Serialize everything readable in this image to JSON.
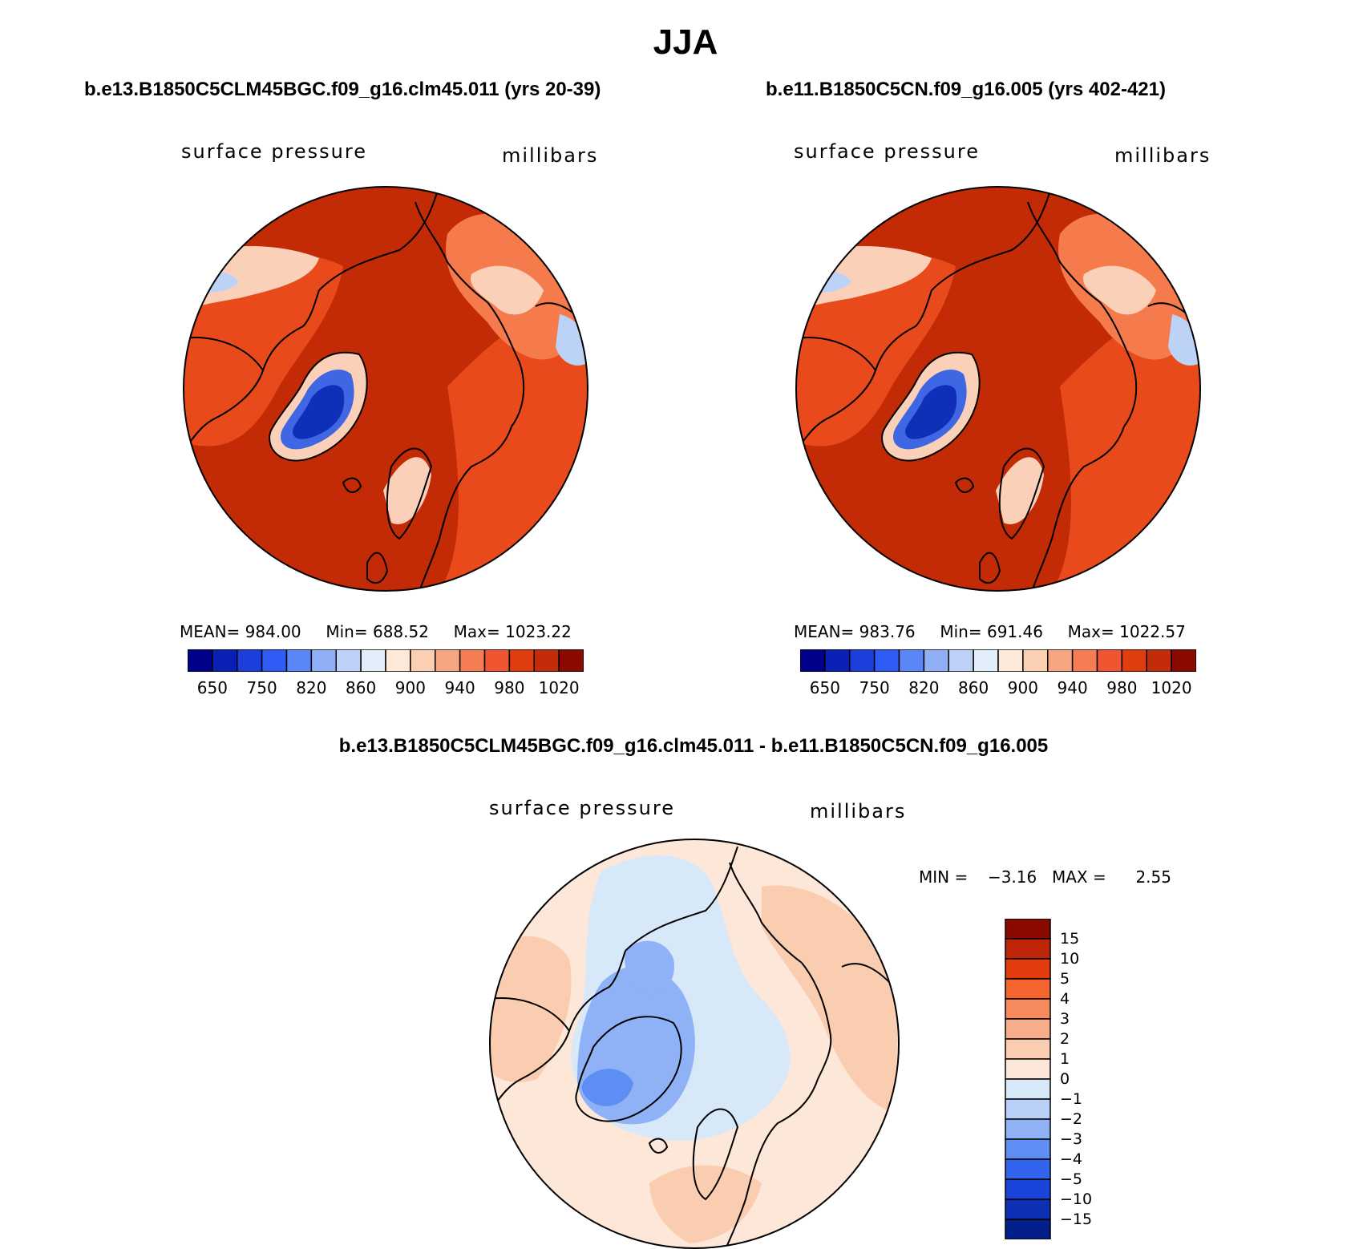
{
  "title": "JJA",
  "panels": [
    {
      "case": "b.e13.B1850C5CLM45BGC.f09_g16.clm45.011 (yrs 20-39)",
      "variable": "surface pressure",
      "units": "millibars",
      "stats": {
        "mean_label": "MEAN=",
        "mean": "984.00",
        "min_label": "Min=",
        "min": "688.52",
        "max_label": "Max=",
        "max": "1023.22"
      }
    },
    {
      "case": "b.e11.B1850C5CN.f09_g16.005 (yrs 402-421)",
      "variable": "surface pressure",
      "units": "millibars",
      "stats": {
        "mean_label": "MEAN=",
        "mean": "983.76",
        "min_label": "Min=",
        "min": "691.46",
        "max_label": "Max=",
        "max": "1022.57"
      }
    }
  ],
  "colorbar": {
    "labels": [
      "650",
      "750",
      "820",
      "860",
      "900",
      "940",
      "980",
      "1020"
    ],
    "colors": [
      "#00008b",
      "#0a1fb5",
      "#1c3fdc",
      "#2e5cf5",
      "#5a86f7",
      "#8eaef5",
      "#bdd0f7",
      "#e3eefb",
      "#fde9d9",
      "#fbcfb2",
      "#f7a682",
      "#f47d54",
      "#ef5530",
      "#e03e10",
      "#c22c08",
      "#8a0a00"
    ]
  },
  "difference": {
    "title": "b.e13.B1850C5CLM45BGC.f09_g16.clm45.011 - b.e11.B1850C5CN.f09_g16.005",
    "variable": "surface pressure",
    "units": "millibars",
    "min_label": "MIN =",
    "min": "−3.16",
    "max_label": "MAX =",
    "max": "2.55",
    "colorbar_labels": [
      "15",
      "10",
      "5",
      "4",
      "3",
      "2",
      "1",
      "0",
      "−1",
      "−2",
      "−3",
      "−4",
      "−5",
      "−10",
      "−15"
    ],
    "colorbar_colors": [
      "#8b0a00",
      "#bf2608",
      "#e23c0c",
      "#f5642e",
      "#f68a5f",
      "#f8ad8a",
      "#fbcdb0",
      "#fde7d8",
      "#d7e8f9",
      "#b9d1f8",
      "#8fb1f6",
      "#5e8df4",
      "#3264ef",
      "#1a44da",
      "#0d2fb3",
      "#021f8c"
    ]
  },
  "map_colors": {
    "ocean_high": "#c32a06",
    "land_mid": "#e84a1c",
    "land_low": "#f57a4c",
    "highland": "#fbd0b8",
    "plateau": "#bcd2f7",
    "greenland_low": "#3f66e3",
    "greenland_core": "#0f2fb8",
    "diff_pos_light": "#fde7d8",
    "diff_pos": "#fbcdb0",
    "diff_neg_light": "#d7e8f9",
    "diff_neg": "#8fb1f6",
    "diff_neg_strong": "#5e8df4"
  }
}
